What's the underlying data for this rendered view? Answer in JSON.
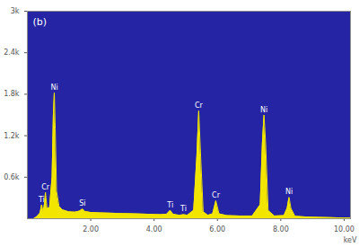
{
  "chart_data": {
    "type": "area",
    "title": "(b)",
    "x_label": "keV",
    "color": "#f2e600",
    "x": [
      0.2,
      0.3,
      0.4,
      0.45,
      0.5,
      0.55,
      0.57,
      0.62,
      0.7,
      0.78,
      0.82,
      0.85,
      0.88,
      0.92,
      1.0,
      1.1,
      1.3,
      1.5,
      1.65,
      1.74,
      1.82,
      2.0,
      2.3,
      2.6,
      3.0,
      3.4,
      3.8,
      4.2,
      4.4,
      4.51,
      4.6,
      4.8,
      4.93,
      5.05,
      5.25,
      5.35,
      5.41,
      5.47,
      5.55,
      5.7,
      5.85,
      5.95,
      6.05,
      6.3,
      6.7,
      7.1,
      7.35,
      7.42,
      7.47,
      7.52,
      7.6,
      7.8,
      8.1,
      8.2,
      8.26,
      8.32,
      8.45,
      8.8,
      9.2,
      9.6,
      10.0,
      10.2
    ],
    "values": [
      0,
      30,
      80,
      200,
      90,
      250,
      380,
      150,
      160,
      600,
      1500,
      1820,
      1300,
      400,
      180,
      130,
      100,
      95,
      110,
      140,
      105,
      90,
      85,
      80,
      75,
      70,
      65,
      60,
      65,
      120,
      65,
      50,
      60,
      50,
      120,
      900,
      1560,
      900,
      100,
      50,
      70,
      260,
      70,
      45,
      40,
      40,
      200,
      1100,
      1500,
      1100,
      120,
      40,
      45,
      150,
      310,
      150,
      35,
      25,
      20,
      15,
      10,
      10
    ],
    "annotations": [
      {
        "text": "Ti",
        "x": 0.45
      },
      {
        "text": "Cr",
        "x": 0.57
      },
      {
        "text": "Ni",
        "x": 0.85
      },
      {
        "text": "Si",
        "x": 1.74
      },
      {
        "text": "Ti",
        "x": 4.51
      },
      {
        "text": "Ti",
        "x": 4.93
      },
      {
        "text": "Cr",
        "x": 5.41
      },
      {
        "text": "Cr",
        "x": 5.95
      },
      {
        "text": "Ni",
        "x": 7.47
      },
      {
        "text": "Ni",
        "x": 8.26
      }
    ],
    "xlim": [
      0,
      10.2
    ],
    "xticks": [
      {
        "value": 2,
        "label": "2.00"
      },
      {
        "value": 4,
        "label": "4.00"
      },
      {
        "value": 6,
        "label": "6.00"
      },
      {
        "value": 8,
        "label": "8.00"
      },
      {
        "value": 10,
        "label": "10.00"
      }
    ],
    "ylim": [
      0,
      3000
    ],
    "yticks": [
      {
        "value": 600,
        "label": "0.6k"
      },
      {
        "value": 1200,
        "label": "1.2k"
      },
      {
        "value": 1800,
        "label": "1.8k"
      },
      {
        "value": 2400,
        "label": "2.4k"
      },
      {
        "value": 3000,
        "label": "3k"
      }
    ],
    "grid": false
  }
}
